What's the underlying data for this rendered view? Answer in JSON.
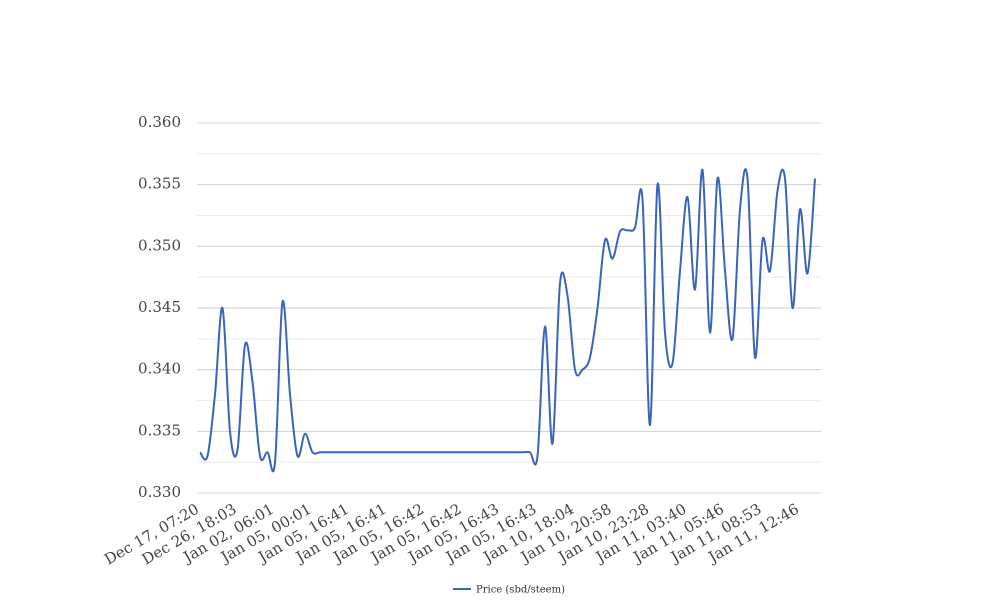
{
  "chart_data": {
    "type": "line",
    "categories": [
      "Dec 17, 07:20",
      null,
      null,
      null,
      null,
      "Dec 26, 18:03",
      null,
      null,
      null,
      null,
      "Jan 02, 06:01",
      null,
      null,
      null,
      null,
      "Jan 05, 00:01",
      null,
      null,
      null,
      null,
      "Jan 05, 16:41",
      null,
      null,
      null,
      null,
      "Jan 05, 16:41",
      null,
      null,
      null,
      null,
      "Jan 05, 16:42",
      null,
      null,
      null,
      null,
      "Jan 05, 16:42",
      null,
      null,
      null,
      null,
      "Jan 05, 16:43",
      null,
      null,
      null,
      null,
      "Jan 05, 16:43",
      null,
      null,
      null,
      null,
      "Jan 10, 18:04",
      null,
      null,
      null,
      null,
      "Jan 10, 20:58",
      null,
      null,
      null,
      null,
      "Jan 10, 23:28",
      null,
      null,
      null,
      null,
      "Jan 11, 03:40",
      null,
      null,
      null,
      null,
      "Jan 11, 05:46",
      null,
      null,
      null,
      null,
      "Jan 11, 08:53",
      null,
      null,
      null,
      null,
      "Jan 11, 12:46",
      null,
      null
    ],
    "series": [
      {
        "name": "Price (sbd/steem)",
        "color": "#3a64b8",
        "values": [
          0.3333,
          0.333,
          0.338,
          0.345,
          0.335,
          0.3335,
          0.342,
          0.339,
          0.333,
          0.3333,
          0.3325,
          0.3455,
          0.338,
          0.333,
          0.3348,
          0.3333,
          0.3333,
          0.3333,
          0.3333,
          0.3333,
          0.3333,
          0.3333,
          0.3333,
          0.3333,
          0.3333,
          0.3333,
          0.3333,
          0.3333,
          0.3333,
          0.3333,
          0.3333,
          0.3333,
          0.3333,
          0.3333,
          0.3333,
          0.3333,
          0.3333,
          0.3333,
          0.3333,
          0.3333,
          0.3333,
          0.3333,
          0.3333,
          0.3333,
          0.3333,
          0.333,
          0.3435,
          0.334,
          0.347,
          0.346,
          0.34,
          0.34,
          0.341,
          0.345,
          0.3505,
          0.349,
          0.3512,
          0.3513,
          0.3515,
          0.3538,
          0.3355,
          0.355,
          0.343,
          0.3405,
          0.348,
          0.354,
          0.3465,
          0.3562,
          0.343,
          0.3555,
          0.348,
          0.3425,
          0.353,
          0.3555,
          0.341,
          0.3505,
          0.348,
          0.3545,
          0.3555,
          0.345,
          0.353,
          0.3478,
          0.3555
        ]
      }
    ],
    "ylim": [
      0.33,
      0.36
    ],
    "yticks": [
      {
        "value": 0.33,
        "label": "0.330"
      },
      {
        "value": 0.335,
        "label": "0.335"
      },
      {
        "value": 0.34,
        "label": "0.340"
      },
      {
        "value": 0.345,
        "label": "0.345"
      },
      {
        "value": 0.35,
        "label": "0.350"
      },
      {
        "value": 0.355,
        "label": "0.355"
      },
      {
        "value": 0.36,
        "label": "0.360"
      }
    ],
    "minor_yticks": [
      0.3325,
      0.3375,
      0.3425,
      0.3475,
      0.3525,
      0.3575
    ],
    "grid": true,
    "legend": "bottom"
  }
}
